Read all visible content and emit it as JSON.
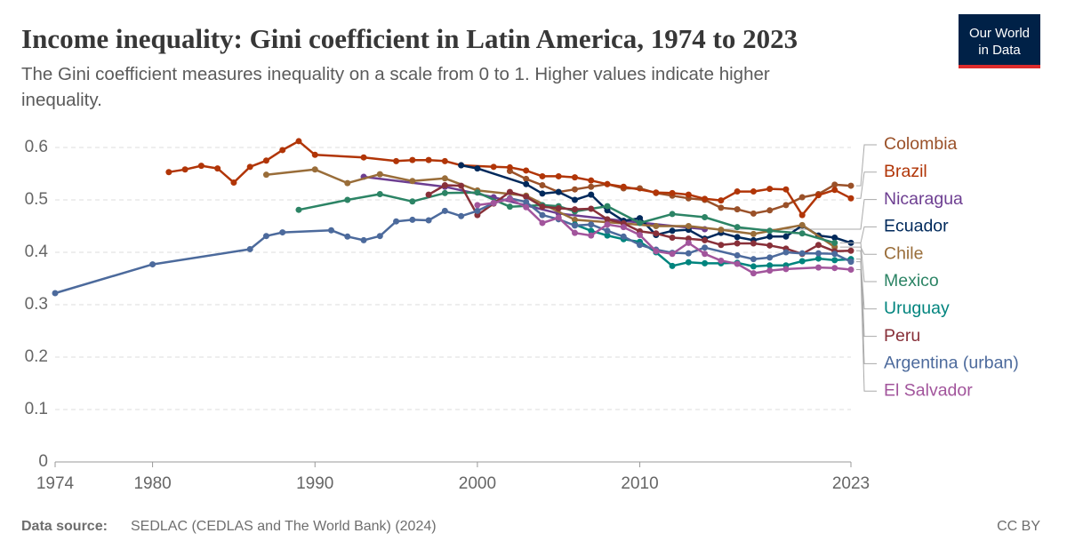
{
  "chart_data": {
    "type": "line",
    "title": "Income inequality: Gini coefficient in Latin America, 1974 to 2023",
    "subtitle": [
      "The Gini coefficient measures inequality on a scale from 0 to 1. Higher values indicate higher",
      "inequality."
    ],
    "logo": [
      "Our World",
      "in Data"
    ],
    "source_label": "Data source:",
    "source": "SEDLAC (CEDLAS and The World Bank) (2024)",
    "license": "CC BY",
    "xlim": [
      1974,
      2023
    ],
    "xticks": [
      1974,
      1980,
      1990,
      2000,
      2010,
      2023
    ],
    "ylim": [
      0,
      0.6
    ],
    "yticks": [
      0,
      0.1,
      0.2,
      0.3,
      0.4,
      0.5,
      0.6
    ],
    "grid": true,
    "series": [
      {
        "name": "Colombia",
        "color": "#9A5129",
        "x": [
          2002,
          2003,
          2004,
          2005,
          2006,
          2007,
          2008,
          2009,
          2010,
          2011,
          2012,
          2013,
          2014,
          2015,
          2016,
          2017,
          2018,
          2019,
          2020,
          2021,
          2022,
          2023
        ],
        "values": [
          0.555,
          0.54,
          0.528,
          0.515,
          0.52,
          0.525,
          0.53,
          0.522,
          0.522,
          0.513,
          0.508,
          0.503,
          0.5,
          0.485,
          0.482,
          0.474,
          0.48,
          0.49,
          0.505,
          0.511,
          0.529,
          0.527
        ]
      },
      {
        "name": "Brazil",
        "color": "#B13507",
        "x": [
          1981,
          1982,
          1983,
          1984,
          1985,
          1986,
          1987,
          1988,
          1989,
          1990,
          1993,
          1995,
          1996,
          1997,
          1998,
          1999,
          2001,
          2002,
          2003,
          2004,
          2005,
          2006,
          2007,
          2008,
          2009,
          2011,
          2012,
          2013,
          2014,
          2015,
          2016,
          2017,
          2018,
          2019,
          2020,
          2021,
          2022,
          2023
        ],
        "values": [
          0.553,
          0.558,
          0.565,
          0.56,
          0.533,
          0.563,
          0.575,
          0.595,
          0.612,
          0.586,
          0.581,
          0.574,
          0.576,
          0.576,
          0.574,
          0.566,
          0.563,
          0.562,
          0.556,
          0.545,
          0.545,
          0.543,
          0.537,
          0.53,
          0.525,
          0.514,
          0.513,
          0.51,
          0.502,
          0.499,
          0.516,
          0.516,
          0.521,
          0.52,
          0.471,
          0.509,
          0.519,
          0.503
        ]
      },
      {
        "name": "Nicaragua",
        "color": "#6D3E91",
        "x": [
          1993,
          1998,
          2001,
          2005,
          2009,
          2014
        ],
        "values": [
          0.544,
          0.525,
          0.505,
          0.474,
          0.46,
          0.444
        ]
      },
      {
        "name": "Ecuador",
        "color": "#00295B",
        "x": [
          1999,
          2000,
          2003,
          2004,
          2005,
          2006,
          2007,
          2008,
          2009,
          2010,
          2011,
          2012,
          2013,
          2014,
          2015,
          2016,
          2017,
          2018,
          2019,
          2020,
          2021,
          2022,
          2023
        ],
        "values": [
          0.566,
          0.56,
          0.53,
          0.512,
          0.515,
          0.5,
          0.51,
          0.48,
          0.46,
          0.465,
          0.433,
          0.441,
          0.443,
          0.426,
          0.437,
          0.429,
          0.423,
          0.43,
          0.43,
          0.451,
          0.432,
          0.428,
          0.418
        ]
      },
      {
        "name": "Chile",
        "color": "#996D39",
        "x": [
          1987,
          1990,
          1992,
          1994,
          1996,
          1998,
          2000,
          2003,
          2006,
          2009,
          2011,
          2013,
          2015,
          2017,
          2020,
          2022
        ],
        "values": [
          0.548,
          0.558,
          0.532,
          0.549,
          0.536,
          0.541,
          0.518,
          0.508,
          0.462,
          0.455,
          0.45,
          0.45,
          0.443,
          0.435,
          0.452,
          0.41
        ]
      },
      {
        "name": "Mexico",
        "color": "#2C8465",
        "x": [
          1989,
          1992,
          1994,
          1996,
          1998,
          2000,
          2002,
          2004,
          2005,
          2006,
          2008,
          2010,
          2012,
          2014,
          2016,
          2018,
          2020,
          2022
        ],
        "values": [
          0.481,
          0.5,
          0.511,
          0.497,
          0.513,
          0.514,
          0.487,
          0.49,
          0.488,
          0.478,
          0.488,
          0.456,
          0.473,
          0.467,
          0.448,
          0.441,
          0.436,
          0.418
        ]
      },
      {
        "name": "Uruguay",
        "color": "#00847E",
        "x": [
          2006,
          2007,
          2008,
          2009,
          2010,
          2011,
          2012,
          2013,
          2014,
          2015,
          2016,
          2017,
          2018,
          2019,
          2020,
          2021,
          2022,
          2023
        ],
        "values": [
          0.453,
          0.441,
          0.432,
          0.425,
          0.42,
          0.4,
          0.374,
          0.381,
          0.379,
          0.379,
          0.38,
          0.373,
          0.375,
          0.375,
          0.383,
          0.388,
          0.385,
          0.387
        ]
      },
      {
        "name": "Peru",
        "color": "#883039",
        "x": [
          1997,
          1998,
          1999,
          2000,
          2001,
          2002,
          2003,
          2004,
          2005,
          2006,
          2007,
          2008,
          2009,
          2010,
          2011,
          2012,
          2013,
          2014,
          2015,
          2016,
          2017,
          2018,
          2019,
          2020,
          2021,
          2022,
          2023
        ],
        "values": [
          0.51,
          0.528,
          0.527,
          0.471,
          0.493,
          0.515,
          0.506,
          0.487,
          0.484,
          0.482,
          0.483,
          0.463,
          0.455,
          0.44,
          0.436,
          0.428,
          0.426,
          0.423,
          0.414,
          0.417,
          0.417,
          0.413,
          0.407,
          0.397,
          0.414,
          0.402,
          0.403
        ]
      },
      {
        "name": "Argentina (urban)",
        "color": "#4C6A9C",
        "x": [
          1974,
          1980,
          1986,
          1987,
          1988,
          1991,
          1992,
          1993,
          1994,
          1995,
          1996,
          1997,
          1998,
          1999,
          2000,
          2001,
          2002,
          2003,
          2004,
          2005,
          2006,
          2007,
          2008,
          2009,
          2010,
          2011,
          2012,
          2013,
          2014,
          2016,
          2017,
          2018,
          2019,
          2020,
          2021,
          2022,
          2023
        ],
        "values": [
          0.322,
          0.377,
          0.406,
          0.431,
          0.438,
          0.442,
          0.43,
          0.423,
          0.431,
          0.459,
          0.462,
          0.461,
          0.479,
          0.469,
          0.479,
          0.494,
          0.503,
          0.496,
          0.471,
          0.463,
          0.451,
          0.453,
          0.441,
          0.43,
          0.414,
          0.405,
          0.399,
          0.398,
          0.409,
          0.394,
          0.387,
          0.39,
          0.4,
          0.398,
          0.398,
          0.397,
          0.382
        ]
      },
      {
        "name": "El Salvador",
        "color": "#A2559C",
        "x": [
          2000,
          2001,
          2002,
          2003,
          2004,
          2005,
          2006,
          2007,
          2008,
          2009,
          2010,
          2011,
          2012,
          2013,
          2014,
          2015,
          2016,
          2017,
          2018,
          2019,
          2021,
          2022,
          2023
        ],
        "values": [
          0.49,
          0.494,
          0.502,
          0.486,
          0.456,
          0.466,
          0.437,
          0.432,
          0.453,
          0.448,
          0.433,
          0.402,
          0.397,
          0.418,
          0.397,
          0.384,
          0.378,
          0.36,
          0.365,
          0.368,
          0.371,
          0.37,
          0.367
        ]
      }
    ]
  }
}
